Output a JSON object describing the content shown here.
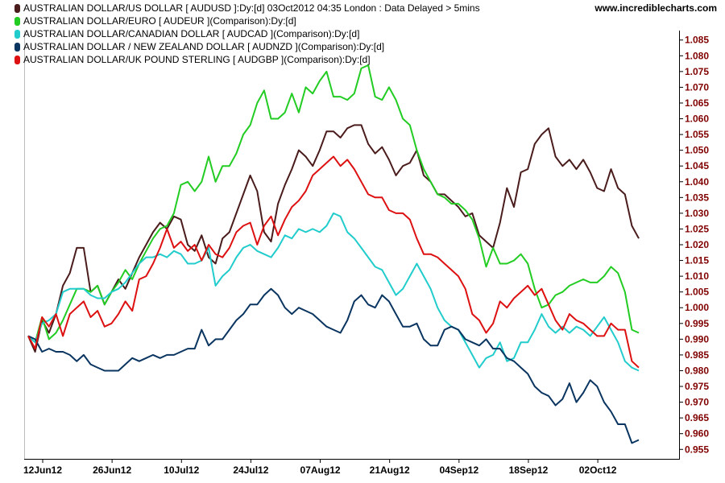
{
  "page": {
    "site_link": "www.incrediblecharts.com"
  },
  "legend": [
    {
      "swatch": "#4a1c1c",
      "label": "AUSTRALIAN DOLLAR/US DOLLAR [ AUDUSD ]:Dy:[d]   03Oct2012 04:35 London : Data Delayed > 5mins"
    },
    {
      "swatch": "#22cc22",
      "label": "AUSTRALIAN DOLLAR/EURO [ AUDEUR ](Comparison):Dy:[d]"
    },
    {
      "swatch": "#22cccc",
      "label": "AUSTRALIAN DOLLAR/CANADIAN DOLLAR [ AUDCAD ](Comparison):Dy:[d]"
    },
    {
      "swatch": "#0a3560",
      "label": "AUSTRALIAN DOLLAR / NEW ZEALAND DOLLAR [ AUDNZD ](Comparison):Dy:[d]"
    },
    {
      "swatch": "#dd1111",
      "label": "AUSTRALIAN DOLLAR/UK POUND STERLING [ AUDGBP ](Comparison):Dy:[d]"
    }
  ],
  "chart_data": {
    "type": "line",
    "ylim": [
      0.952,
      1.088
    ],
    "y_ticks": [
      "1.085",
      "1.080",
      "1.075",
      "1.070",
      "1.065",
      "1.060",
      "1.055",
      "1.050",
      "1.045",
      "1.040",
      "1.035",
      "1.030",
      "1.025",
      "1.020",
      "1.015",
      "1.010",
      "1.005",
      "1.000",
      "0.995",
      "0.990",
      "0.985",
      "0.980",
      "0.975",
      "0.970",
      "0.965",
      "0.960",
      "0.955"
    ],
    "y_tick_color": "#800000",
    "x_ticks": [
      "12Jun12",
      "26Jun12",
      "10Jul12",
      "24Jul12",
      "07Aug12",
      "21Aug12",
      "04Sep12",
      "18Sep12",
      "02Oct12"
    ],
    "grid": false,
    "legend_position": "top-left",
    "series": [
      {
        "color": "#4a1c1c",
        "values": [
          0.991,
          0.986,
          0.996,
          0.992,
          0.998,
          1.007,
          1.011,
          1.019,
          1.019,
          1.005,
          1.007,
          1.001,
          1.005,
          1.009,
          1.006,
          1.011,
          1.016,
          1.02,
          1.024,
          1.027,
          1.025,
          1.029,
          1.028,
          1.02,
          1.018,
          1.023,
          1.016,
          1.014,
          1.022,
          1.024,
          1.03,
          1.036,
          1.042,
          1.037,
          1.024,
          1.021,
          1.033,
          1.039,
          1.044,
          1.05,
          1.048,
          1.045,
          1.05,
          1.056,
          1.056,
          1.054,
          1.057,
          1.058,
          1.058,
          1.052,
          1.049,
          1.051,
          1.047,
          1.042,
          1.045,
          1.046,
          1.05,
          1.042,
          1.04,
          1.036,
          1.036,
          1.034,
          1.032,
          1.029,
          1.03,
          1.023,
          1.021,
          1.019,
          1.027,
          1.038,
          1.032,
          1.043,
          1.044,
          1.052,
          1.055,
          1.057,
          1.048,
          1.045,
          1.047,
          1.044,
          1.047,
          1.043,
          1.038,
          1.037,
          1.044,
          1.038,
          1.036,
          1.026,
          1.022
        ]
      },
      {
        "color": "#22cc22",
        "values": [
          0.991,
          0.989,
          0.997,
          0.99,
          0.992,
          0.996,
          1.001,
          1.006,
          1.006,
          1.005,
          1.007,
          1.001,
          1.005,
          1.008,
          1.012,
          1.009,
          1.014,
          1.018,
          1.022,
          1.025,
          1.026,
          1.03,
          1.039,
          1.04,
          1.037,
          1.04,
          1.048,
          1.04,
          1.045,
          1.045,
          1.049,
          1.055,
          1.058,
          1.065,
          1.069,
          1.06,
          1.06,
          1.062,
          1.068,
          1.062,
          1.07,
          1.068,
          1.072,
          1.075,
          1.067,
          1.067,
          1.066,
          1.068,
          1.076,
          1.077,
          1.067,
          1.066,
          1.07,
          1.066,
          1.06,
          1.058,
          1.05,
          1.044,
          1.04,
          1.036,
          1.035,
          1.033,
          1.033,
          1.031,
          1.028,
          1.022,
          1.013,
          1.019,
          1.014,
          1.014,
          1.015,
          1.017,
          1.014,
          1.006,
          1.0,
          1.001,
          1.004,
          1.005,
          1.007,
          1.008,
          1.009,
          1.008,
          1.008,
          1.01,
          1.013,
          1.011,
          1.005,
          0.993,
          0.992
        ]
      },
      {
        "color": "#22cccc",
        "values": [
          0.991,
          0.989,
          0.995,
          0.996,
          0.998,
          1.005,
          1.006,
          1.006,
          1.006,
          1.004,
          1.003,
          1.003,
          1.005,
          1.006,
          1.008,
          1.011,
          1.014,
          1.016,
          1.016,
          1.017,
          1.016,
          1.018,
          1.017,
          1.014,
          1.014,
          1.015,
          1.019,
          1.007,
          1.01,
          1.012,
          1.016,
          1.019,
          1.02,
          1.018,
          1.017,
          1.016,
          1.019,
          1.023,
          1.022,
          1.025,
          1.024,
          1.025,
          1.024,
          1.026,
          1.03,
          1.029,
          1.024,
          1.022,
          1.019,
          1.016,
          1.013,
          1.012,
          1.008,
          1.004,
          1.006,
          1.01,
          1.014,
          1.01,
          1.006,
          1.0,
          0.996,
          0.994,
          0.993,
          0.989,
          0.985,
          0.981,
          0.984,
          0.985,
          0.989,
          0.983,
          0.984,
          0.989,
          0.989,
          0.993,
          0.998,
          0.994,
          0.992,
          0.994,
          0.992,
          0.994,
          0.993,
          0.991,
          0.994,
          0.997,
          0.993,
          0.989,
          0.983,
          0.981,
          0.98
        ]
      },
      {
        "color": "#0a3560",
        "values": [
          0.991,
          0.99,
          0.986,
          0.987,
          0.986,
          0.986,
          0.985,
          0.983,
          0.985,
          0.982,
          0.981,
          0.98,
          0.98,
          0.98,
          0.982,
          0.984,
          0.983,
          0.984,
          0.985,
          0.984,
          0.985,
          0.985,
          0.986,
          0.987,
          0.987,
          0.993,
          0.988,
          0.99,
          0.99,
          0.993,
          0.996,
          0.998,
          1.001,
          1.001,
          1.004,
          1.006,
          1.004,
          1.0,
          0.998,
          1.0,
          0.999,
          0.998,
          0.996,
          0.994,
          0.993,
          0.992,
          0.996,
          1.002,
          1.004,
          1.001,
          1.0,
          1.004,
          1.002,
          0.998,
          0.994,
          0.994,
          0.995,
          0.99,
          0.988,
          0.988,
          0.993,
          0.994,
          0.993,
          0.99,
          0.989,
          0.988,
          0.99,
          0.987,
          0.987,
          0.984,
          0.983,
          0.981,
          0.979,
          0.975,
          0.973,
          0.972,
          0.969,
          0.971,
          0.976,
          0.97,
          0.973,
          0.977,
          0.975,
          0.97,
          0.967,
          0.963,
          0.963,
          0.957,
          0.958
        ]
      },
      {
        "color": "#dd1111",
        "values": [
          0.991,
          0.987,
          0.997,
          0.994,
          0.998,
          0.991,
          0.998,
          1.0,
          1.002,
          0.997,
          0.999,
          0.994,
          0.995,
          0.998,
          1.002,
          0.999,
          1.009,
          1.01,
          1.014,
          1.019,
          1.025,
          1.019,
          1.021,
          1.018,
          1.02,
          1.015,
          1.02,
          1.017,
          1.016,
          1.019,
          1.024,
          1.026,
          1.027,
          1.02,
          1.026,
          1.029,
          1.023,
          1.028,
          1.032,
          1.034,
          1.037,
          1.042,
          1.044,
          1.046,
          1.048,
          1.045,
          1.047,
          1.044,
          1.04,
          1.036,
          1.035,
          1.035,
          1.031,
          1.03,
          1.03,
          1.028,
          1.022,
          1.017,
          1.017,
          1.016,
          1.014,
          1.012,
          1.01,
          1.006,
          0.998,
          0.996,
          0.992,
          0.995,
          1.002,
          1.0,
          1.003,
          1.005,
          1.007,
          1.004,
          1.006,
          1.001,
          0.996,
          0.993,
          0.998,
          0.996,
          0.995,
          0.993,
          0.991,
          0.991,
          0.995,
          0.993,
          0.993,
          0.983,
          0.981
        ]
      }
    ]
  }
}
